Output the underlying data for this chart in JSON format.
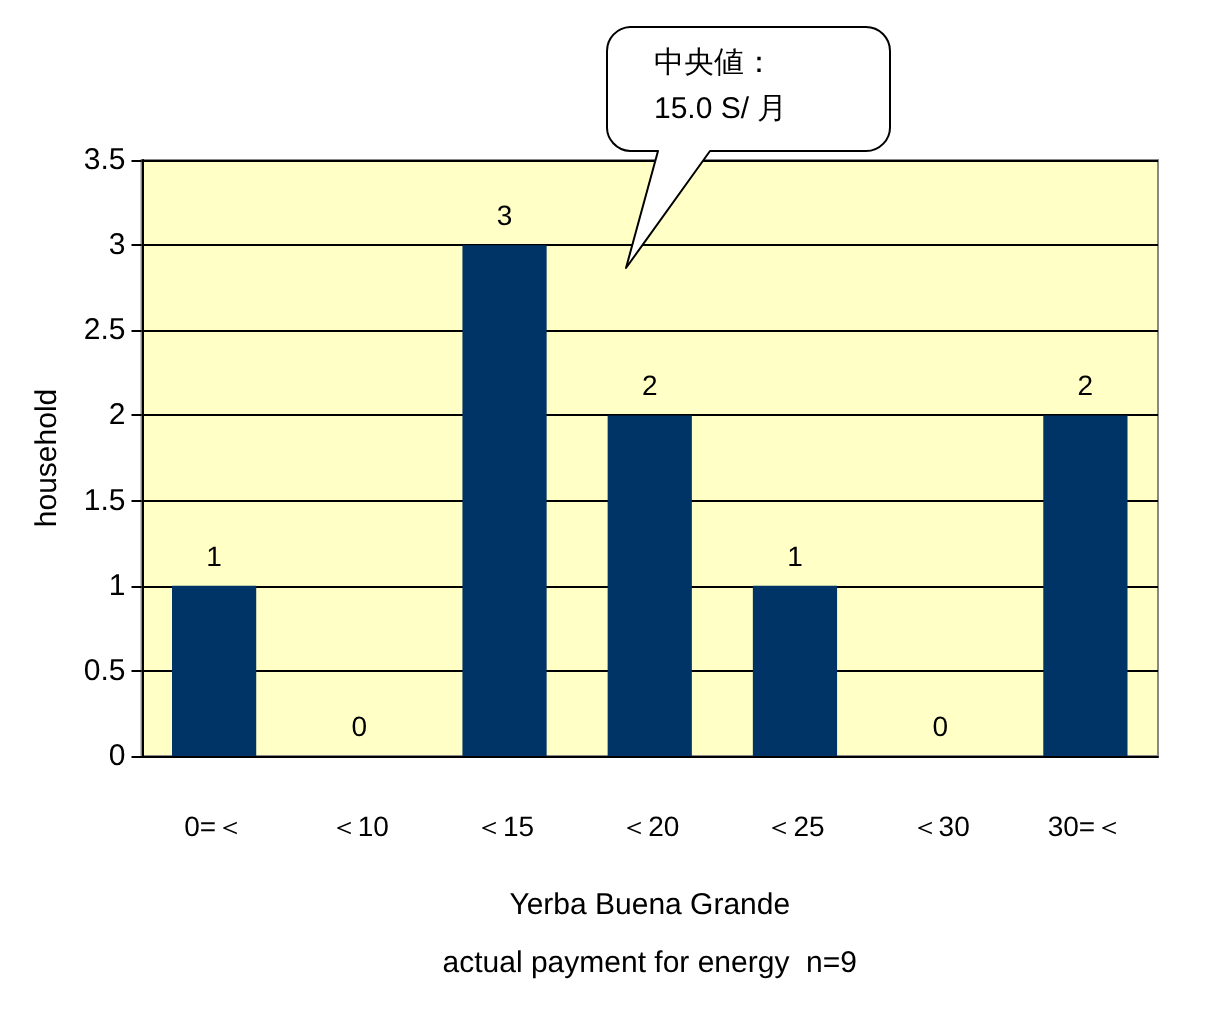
{
  "chart_data": {
    "type": "bar",
    "categories": [
      "0=＜",
      "＜10",
      "＜15",
      "＜20",
      "＜25",
      "＜30",
      "30=＜"
    ],
    "values": [
      1,
      0,
      3,
      2,
      1,
      0,
      2
    ],
    "color": "#003366",
    "ylabel": "household",
    "xlabel": "Yerba Buena Grande\nactual payment for energy  n=9",
    "ylim": [
      0,
      3.5
    ],
    "yticks": [
      0,
      0.5,
      1,
      1.5,
      2,
      2.5,
      3,
      3.5
    ],
    "grid": "y",
    "data_labels": true,
    "annotations": [
      "中央値：\n15.0 S/ 月"
    ]
  }
}
